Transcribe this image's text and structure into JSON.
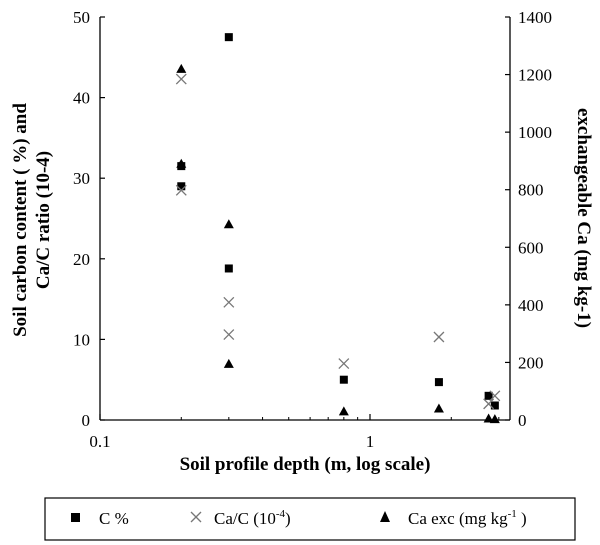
{
  "chart_data": {
    "type": "scatter",
    "x_scale": "log",
    "xlim": [
      0.1,
      3.3
    ],
    "x_ticks": [
      0.1,
      1
    ],
    "x_tick_labels": [
      "0.1",
      "1"
    ],
    "xlabel": "Soil profile depth (m, log scale)",
    "ylabel_left_line1": "Soil carbon content ( %) and",
    "ylabel_left_line2": "Ca/C  ratio (10-4)",
    "ylabel_right": "exchangeable Ca (mg kg-1)",
    "ylim_left": [
      0,
      50
    ],
    "ylim_right": [
      0,
      1400
    ],
    "y_ticks_left": [
      0,
      10,
      20,
      30,
      40,
      50
    ],
    "y_ticks_right": [
      0,
      200,
      400,
      600,
      800,
      1000,
      1200,
      1400
    ],
    "grid": false,
    "legend_position": "bottom",
    "legend": [
      {
        "label": "C %",
        "marker": "square"
      },
      {
        "label": "Ca/C (10",
        "sup": "-4",
        "tail": ")",
        "marker": "cross"
      },
      {
        "label": "Ca exc (mg kg",
        "sup": "-1",
        "tail": " )",
        "marker": "triangle"
      }
    ],
    "series": [
      {
        "name": "C %",
        "marker": "square",
        "axis": "left",
        "x": [
          0.2,
          0.2,
          0.3,
          0.3,
          0.8,
          1.8,
          2.75,
          2.9
        ],
        "y": [
          31.5,
          29,
          47.5,
          18.8,
          5,
          4.7,
          3,
          1.8
        ]
      },
      {
        "name": "Ca/C (10-4)",
        "marker": "cross",
        "axis": "left",
        "x": [
          0.2,
          0.2,
          0.3,
          0.3,
          0.8,
          1.8,
          2.75,
          2.9
        ],
        "y": [
          42.3,
          28.5,
          14.6,
          10.6,
          7,
          10.3,
          2,
          3
        ]
      },
      {
        "name": "Ca exc (mg kg-1)",
        "marker": "triangle",
        "axis": "right",
        "x": [
          0.2,
          0.2,
          0.3,
          0.3,
          0.8,
          1.8,
          2.75,
          2.9
        ],
        "y": [
          1220,
          890,
          680,
          195,
          30,
          40,
          5,
          3
        ]
      }
    ]
  },
  "colors": {
    "ink": "#000000",
    "cross": "#777777",
    "background": "#ffffff"
  }
}
